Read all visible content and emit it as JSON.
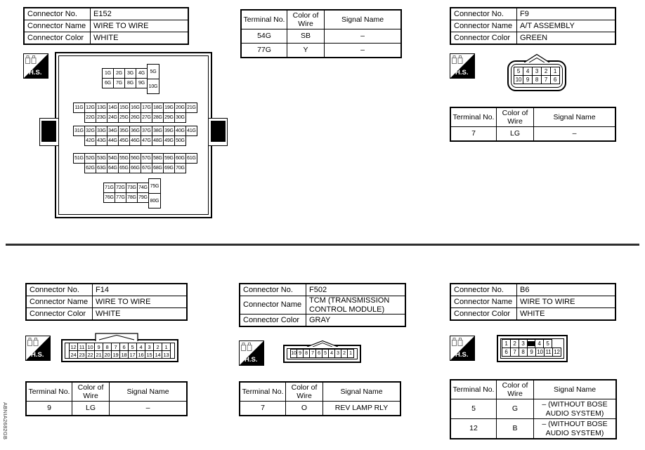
{
  "page": {
    "code": "ABNIA2682GB"
  },
  "labels": {
    "connector_no": "Connector No.",
    "connector_name": "Connector Name",
    "connector_color": "Connector Color",
    "terminal_no": "Terminal No.",
    "wire": "Color of Wire",
    "signal": "Signal Name",
    "hs": "H.S."
  },
  "top_left": {
    "no": "E152",
    "name": "WIRE TO WIRE",
    "color": "WHITE"
  },
  "top_mid": {
    "rows": [
      {
        "terminal": "54G",
        "wire": "SB",
        "signal": "–"
      },
      {
        "terminal": "77G",
        "wire": "Y",
        "signal": "–"
      }
    ]
  },
  "top_right": {
    "no": "F9",
    "name": "A/T ASSEMBLY",
    "color": "GREEN",
    "rows": [
      {
        "terminal": "7",
        "wire": "LG",
        "signal": "–"
      }
    ]
  },
  "bottom_left": {
    "no": "F14",
    "name": "WIRE TO WIRE",
    "color": "WHITE",
    "rows": [
      {
        "terminal": "9",
        "wire": "LG",
        "signal": "–"
      }
    ]
  },
  "bottom_mid": {
    "no": "F502",
    "name": "TCM (TRANSMISSION CONTROL MODULE)",
    "color": "GRAY",
    "rows": [
      {
        "terminal": "7",
        "wire": "O",
        "signal": "REV LAMP RLY"
      }
    ]
  },
  "bottom_right": {
    "no": "B6",
    "name": "WIRE TO WIRE",
    "color": "WHITE",
    "rows": [
      {
        "terminal": "5",
        "wire": "G",
        "signal": "– (WITHOUT BOSE AUDIO SYSTEM)"
      },
      {
        "terminal": "12",
        "wire": "B",
        "signal": "– (WITHOUT BOSE AUDIO SYSTEM)"
      }
    ]
  },
  "pins": {
    "e152": {
      "a1": [
        "1G",
        "2G",
        "3G",
        "4G"
      ],
      "a2": [
        "6G",
        "7G",
        "8G",
        "9G"
      ],
      "aT": [
        "5G",
        "10G"
      ],
      "b1": [
        "11G",
        "12G",
        "13G",
        "14G",
        "15G",
        "16G",
        "17G",
        "18G",
        "19G",
        "20G",
        "21G"
      ],
      "b2": [
        "22G",
        "23G",
        "24G",
        "25G",
        "26G",
        "27G",
        "28G",
        "29G",
        "30G"
      ],
      "c1": [
        "31G",
        "32G",
        "33G",
        "34G",
        "35G",
        "36G",
        "37G",
        "38G",
        "39G",
        "40G",
        "41G"
      ],
      "c2": [
        "42G",
        "43G",
        "44G",
        "45G",
        "46G",
        "47G",
        "48G",
        "49G",
        "50G"
      ],
      "d1": [
        "51G",
        "52G",
        "53G",
        "54G",
        "55G",
        "56G",
        "57G",
        "58G",
        "59G",
        "60G",
        "61G"
      ],
      "d2": [
        "62G",
        "63G",
        "64G",
        "65G",
        "66G",
        "67G",
        "68G",
        "69G",
        "70G"
      ],
      "e1": [
        "71G",
        "72G",
        "73G",
        "74G"
      ],
      "e2": [
        "76G",
        "77G",
        "78G",
        "79G"
      ],
      "eT": [
        "75G",
        "80G"
      ]
    },
    "f9": {
      "r1": [
        "5",
        "4",
        "3",
        "2",
        "1"
      ],
      "r2": [
        "10",
        "9",
        "8",
        "7",
        "6"
      ]
    },
    "f14": {
      "r1": [
        "12",
        "11",
        "10",
        "9",
        "8",
        "7",
        "6",
        "5",
        "4",
        "3",
        "2",
        "1"
      ],
      "r2": [
        "24",
        "23",
        "22",
        "21",
        "20",
        "19",
        "18",
        "17",
        "16",
        "15",
        "14",
        "13"
      ]
    },
    "f502": {
      "r1": [
        "10",
        "9",
        "8",
        "7",
        "6",
        "5",
        "4",
        "3",
        "2",
        "1"
      ]
    },
    "b6": {
      "r1a": [
        "1",
        "2",
        "3"
      ],
      "r1b": [
        "4",
        "5"
      ],
      "r2": [
        "6",
        "7",
        "8",
        "9",
        "10",
        "11",
        "12"
      ]
    }
  }
}
